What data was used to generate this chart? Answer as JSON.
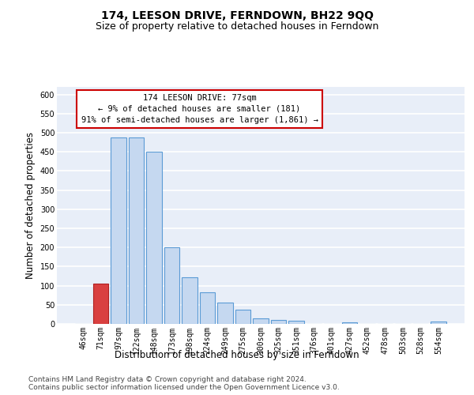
{
  "title": "174, LEESON DRIVE, FERNDOWN, BH22 9QQ",
  "subtitle": "Size of property relative to detached houses in Ferndown",
  "xlabel": "Distribution of detached houses by size in Ferndown",
  "ylabel": "Number of detached properties",
  "categories": [
    "46sqm",
    "71sqm",
    "97sqm",
    "122sqm",
    "148sqm",
    "173sqm",
    "198sqm",
    "224sqm",
    "249sqm",
    "275sqm",
    "300sqm",
    "325sqm",
    "351sqm",
    "376sqm",
    "401sqm",
    "427sqm",
    "452sqm",
    "478sqm",
    "503sqm",
    "528sqm",
    "554sqm"
  ],
  "values": [
    0,
    105,
    487,
    487,
    450,
    200,
    122,
    82,
    56,
    38,
    15,
    10,
    8,
    0,
    0,
    5,
    0,
    0,
    0,
    0,
    6
  ],
  "bar_color": "#c5d8f0",
  "bar_edge_color": "#5b9bd5",
  "highlight_bar_index": 1,
  "highlight_bar_color": "#d94040",
  "highlight_bar_edge_color": "#b02020",
  "annotation_line1": "174 LEESON DRIVE: 77sqm",
  "annotation_line2": "← 9% of detached houses are smaller (181)",
  "annotation_line3": "91% of semi-detached houses are larger (1,861) →",
  "annotation_box_color": "white",
  "annotation_box_edge_color": "#cc0000",
  "ylim": [
    0,
    620
  ],
  "yticks": [
    0,
    50,
    100,
    150,
    200,
    250,
    300,
    350,
    400,
    450,
    500,
    550,
    600
  ],
  "background_color": "#e8eef8",
  "grid_color": "white",
  "footer_text": "Contains HM Land Registry data © Crown copyright and database right 2024.\nContains public sector information licensed under the Open Government Licence v3.0.",
  "title_fontsize": 10,
  "subtitle_fontsize": 9,
  "xlabel_fontsize": 8.5,
  "ylabel_fontsize": 8.5,
  "tick_fontsize": 7,
  "annotation_fontsize": 7.5,
  "footer_fontsize": 6.5
}
